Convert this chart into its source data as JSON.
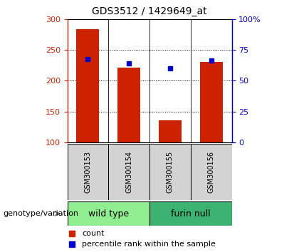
{
  "title": "GDS3512 / 1429649_at",
  "samples": [
    "GSM300153",
    "GSM300154",
    "GSM300155",
    "GSM300156"
  ],
  "counts": [
    283,
    221,
    136,
    230
  ],
  "percentiles_raw": [
    235,
    228,
    220,
    233
  ],
  "ymin": 100,
  "ymax": 300,
  "yticks_left": [
    100,
    150,
    200,
    250,
    300
  ],
  "ytick_labels_left": [
    "100",
    "150",
    "200",
    "250",
    "300"
  ],
  "right_pct_ticks": [
    0,
    25,
    50,
    75,
    100
  ],
  "right_pct_labels": [
    "0",
    "25",
    "50",
    "75",
    "100%"
  ],
  "groups": [
    {
      "label": "wild type",
      "indices": [
        0,
        1
      ],
      "color": "#90EE90"
    },
    {
      "label": "furin null",
      "indices": [
        2,
        3
      ],
      "color": "#3CB371"
    }
  ],
  "bar_color": "#CC2200",
  "dot_color": "#0000CC",
  "bar_width": 0.55,
  "sample_area_color": "#D3D3D3",
  "legend_label_count": "count",
  "legend_label_pct": "percentile rank within the sample",
  "genotype_label": "genotype/variation",
  "left_axis_color": "#CC2200",
  "right_axis_color": "#0000CC",
  "grid_yticks": [
    150,
    200,
    250
  ],
  "title_fontsize": 10,
  "tick_fontsize": 8,
  "sample_fontsize": 7,
  "group_fontsize": 9,
  "legend_fontsize": 8,
  "genotype_fontsize": 8
}
